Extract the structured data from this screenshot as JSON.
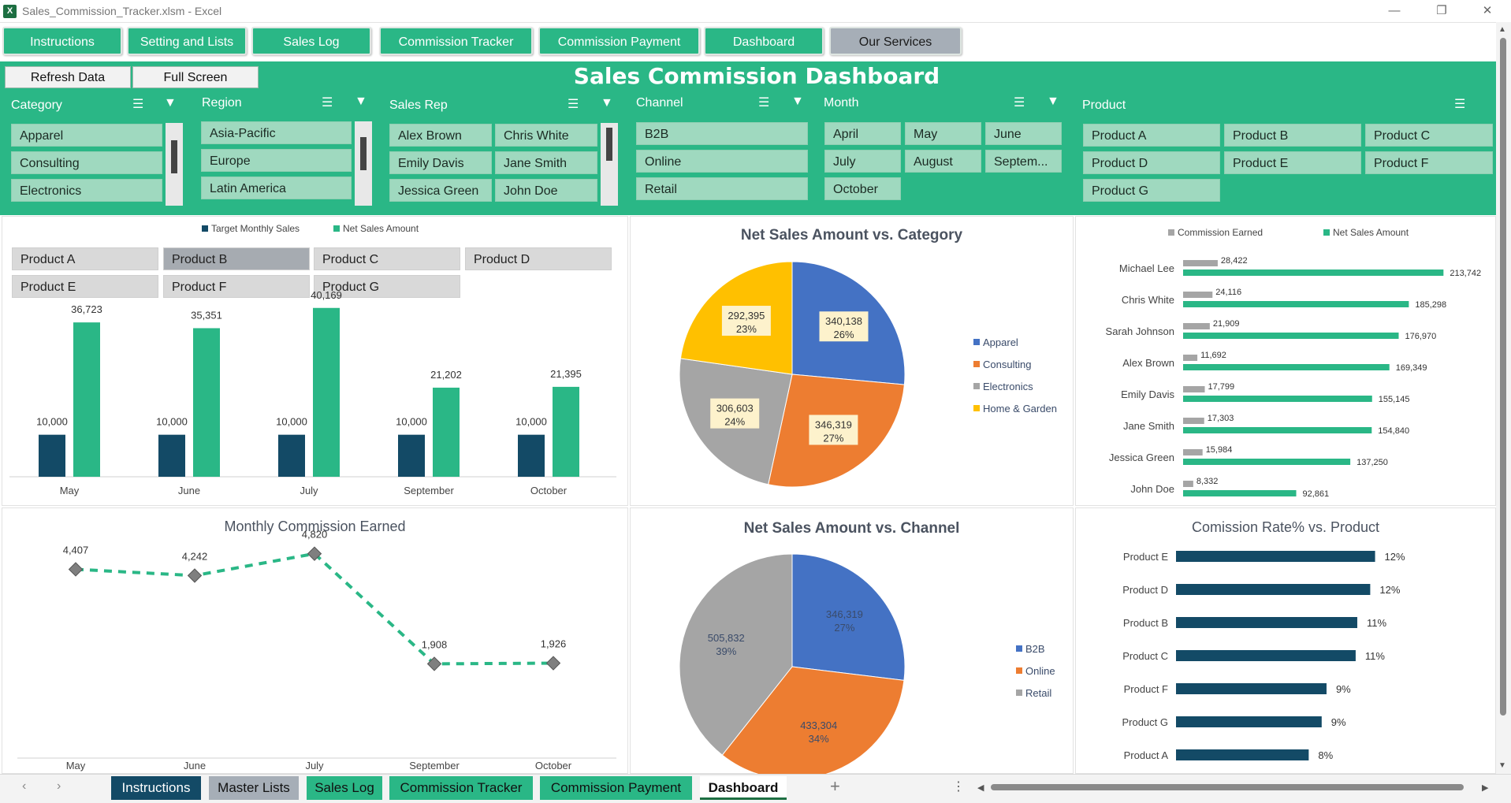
{
  "window": {
    "title": "Sales_Commission_Tracker.xlsm - Excel",
    "logo": "X"
  },
  "nav": [
    "Instructions",
    "Setting and Lists",
    "Sales Log",
    "Commission Tracker",
    "Commission Payment",
    "Dashboard",
    "Our Services"
  ],
  "actions": {
    "refresh": "Refresh Data",
    "fullscreen": "Full Screen"
  },
  "dashboard_title": "Sales Commission Dashboard",
  "slicers": {
    "category": {
      "label": "Category",
      "items": [
        "Apparel",
        "Consulting",
        "Electronics"
      ]
    },
    "region": {
      "label": "Region",
      "items": [
        "Asia-Pacific",
        "Europe",
        "Latin America"
      ]
    },
    "sales_rep": {
      "label": "Sales Rep",
      "items": [
        "Alex Brown",
        "Chris White",
        "Emily Davis",
        "Jane Smith",
        "Jessica Green",
        "John Doe"
      ]
    },
    "channel": {
      "label": "Channel",
      "items": [
        "B2B",
        "Online",
        "Retail"
      ]
    },
    "month": {
      "label": "Month",
      "items": [
        "April",
        "May",
        "June",
        "July",
        "August",
        "Septem...",
        "October"
      ]
    },
    "product": {
      "label": "Product",
      "items": [
        "Product A",
        "Product B",
        "Product C",
        "Product D",
        "Product E",
        "Product F",
        "Product G"
      ]
    }
  },
  "product_filter": {
    "items": [
      "Product A",
      "Product B",
      "Product C",
      "Product D",
      "Product E",
      "Product F",
      "Product G"
    ],
    "selected": "Product B"
  },
  "colors": {
    "green": "#2ab786",
    "navy": "#134a66",
    "gray": "#a5a5a5",
    "blue": "#4472c4",
    "orange": "#ed7d31",
    "yellow": "#ffc000"
  },
  "chart_data": [
    {
      "id": "target_vs_sales",
      "type": "bar",
      "title": "",
      "categories": [
        "May",
        "June",
        "July",
        "September",
        "October"
      ],
      "series": [
        {
          "name": "Target Monthly Sales",
          "values": [
            10000,
            10000,
            10000,
            10000,
            10000
          ]
        },
        {
          "name": "Net Sales Amount",
          "values": [
            36723,
            35351,
            40169,
            21202,
            21395
          ]
        }
      ],
      "labels": {
        "target": [
          "10,000",
          "10,000",
          "10,000",
          "10,000",
          "10,000"
        ],
        "sales": [
          "36,723",
          "35,351",
          "40,169",
          "21,202",
          "21,395"
        ]
      },
      "ylim": [
        0,
        45000
      ],
      "legend": "top"
    },
    {
      "id": "sales_vs_category",
      "type": "pie",
      "title": "Net Sales Amount vs. Category",
      "categories": [
        "Apparel",
        "Consulting",
        "Electronics",
        "Home & Garden"
      ],
      "values": [
        340138,
        346319,
        306603,
        292395
      ],
      "labels": [
        "340,138",
        "346,319",
        "306,603",
        "292,395"
      ],
      "percents": [
        "26%",
        "27%",
        "24%",
        "23%"
      ],
      "legend": "right"
    },
    {
      "id": "rep_commission_sales",
      "type": "bar",
      "title": "",
      "categories": [
        "Michael Lee",
        "Chris White",
        "Sarah Johnson",
        "Alex Brown",
        "Emily Davis",
        "Jane Smith",
        "Jessica Green",
        "John Doe"
      ],
      "series": [
        {
          "name": "Commission Earned",
          "values": [
            28422,
            24116,
            21909,
            11692,
            17799,
            17303,
            15984,
            8332
          ]
        },
        {
          "name": "Net Sales Amount",
          "values": [
            213742,
            185298,
            176970,
            169349,
            155145,
            154840,
            137250,
            92861
          ]
        }
      ],
      "labels": {
        "commission": [
          "28,422",
          "24,116",
          "21,909",
          "11,692",
          "17,799",
          "17,303",
          "15,984",
          "8,332"
        ],
        "sales": [
          "213,742",
          "185,298",
          "176,970",
          "169,349",
          "155,145",
          "154,840",
          "137,250",
          "92,861"
        ]
      },
      "xlim": [
        0,
        220000
      ],
      "legend": "top"
    },
    {
      "id": "monthly_commission",
      "type": "line",
      "title": "Monthly Commission Earned",
      "categories": [
        "May",
        "June",
        "July",
        "September",
        "October"
      ],
      "values": [
        4407,
        4242,
        4820,
        1908,
        1926
      ],
      "labels": [
        "4,407",
        "4,242",
        "4,820",
        "1,908",
        "1,926"
      ],
      "ylim": [
        0,
        6000
      ]
    },
    {
      "id": "sales_vs_channel",
      "type": "pie",
      "title": "Net Sales Amount vs. Channel",
      "categories": [
        "B2B",
        "Online",
        "Retail"
      ],
      "values": [
        346319,
        433304,
        505832
      ],
      "labels": [
        "346,319",
        "433,304",
        "505,832"
      ],
      "percents": [
        "27%",
        "34%",
        "39%"
      ],
      "legend": "right"
    },
    {
      "id": "rate_vs_product",
      "type": "bar",
      "title": "Comission Rate% vs. Product",
      "categories": [
        "Product E",
        "Product D",
        "Product B",
        "Product C",
        "Product F",
        "Product G",
        "Product A"
      ],
      "values": [
        12.3,
        12.0,
        11.2,
        11.1,
        9.3,
        9.0,
        8.2
      ],
      "labels": [
        "12%",
        "12%",
        "11%",
        "11%",
        "9%",
        "9%",
        "8%"
      ],
      "xlim": [
        0,
        15
      ]
    }
  ],
  "sheet_tabs": [
    "Instructions",
    "Master Lists",
    "Sales Log",
    "Commission Tracker",
    "Commission Payment",
    "Dashboard"
  ],
  "active_sheet": "Dashboard"
}
